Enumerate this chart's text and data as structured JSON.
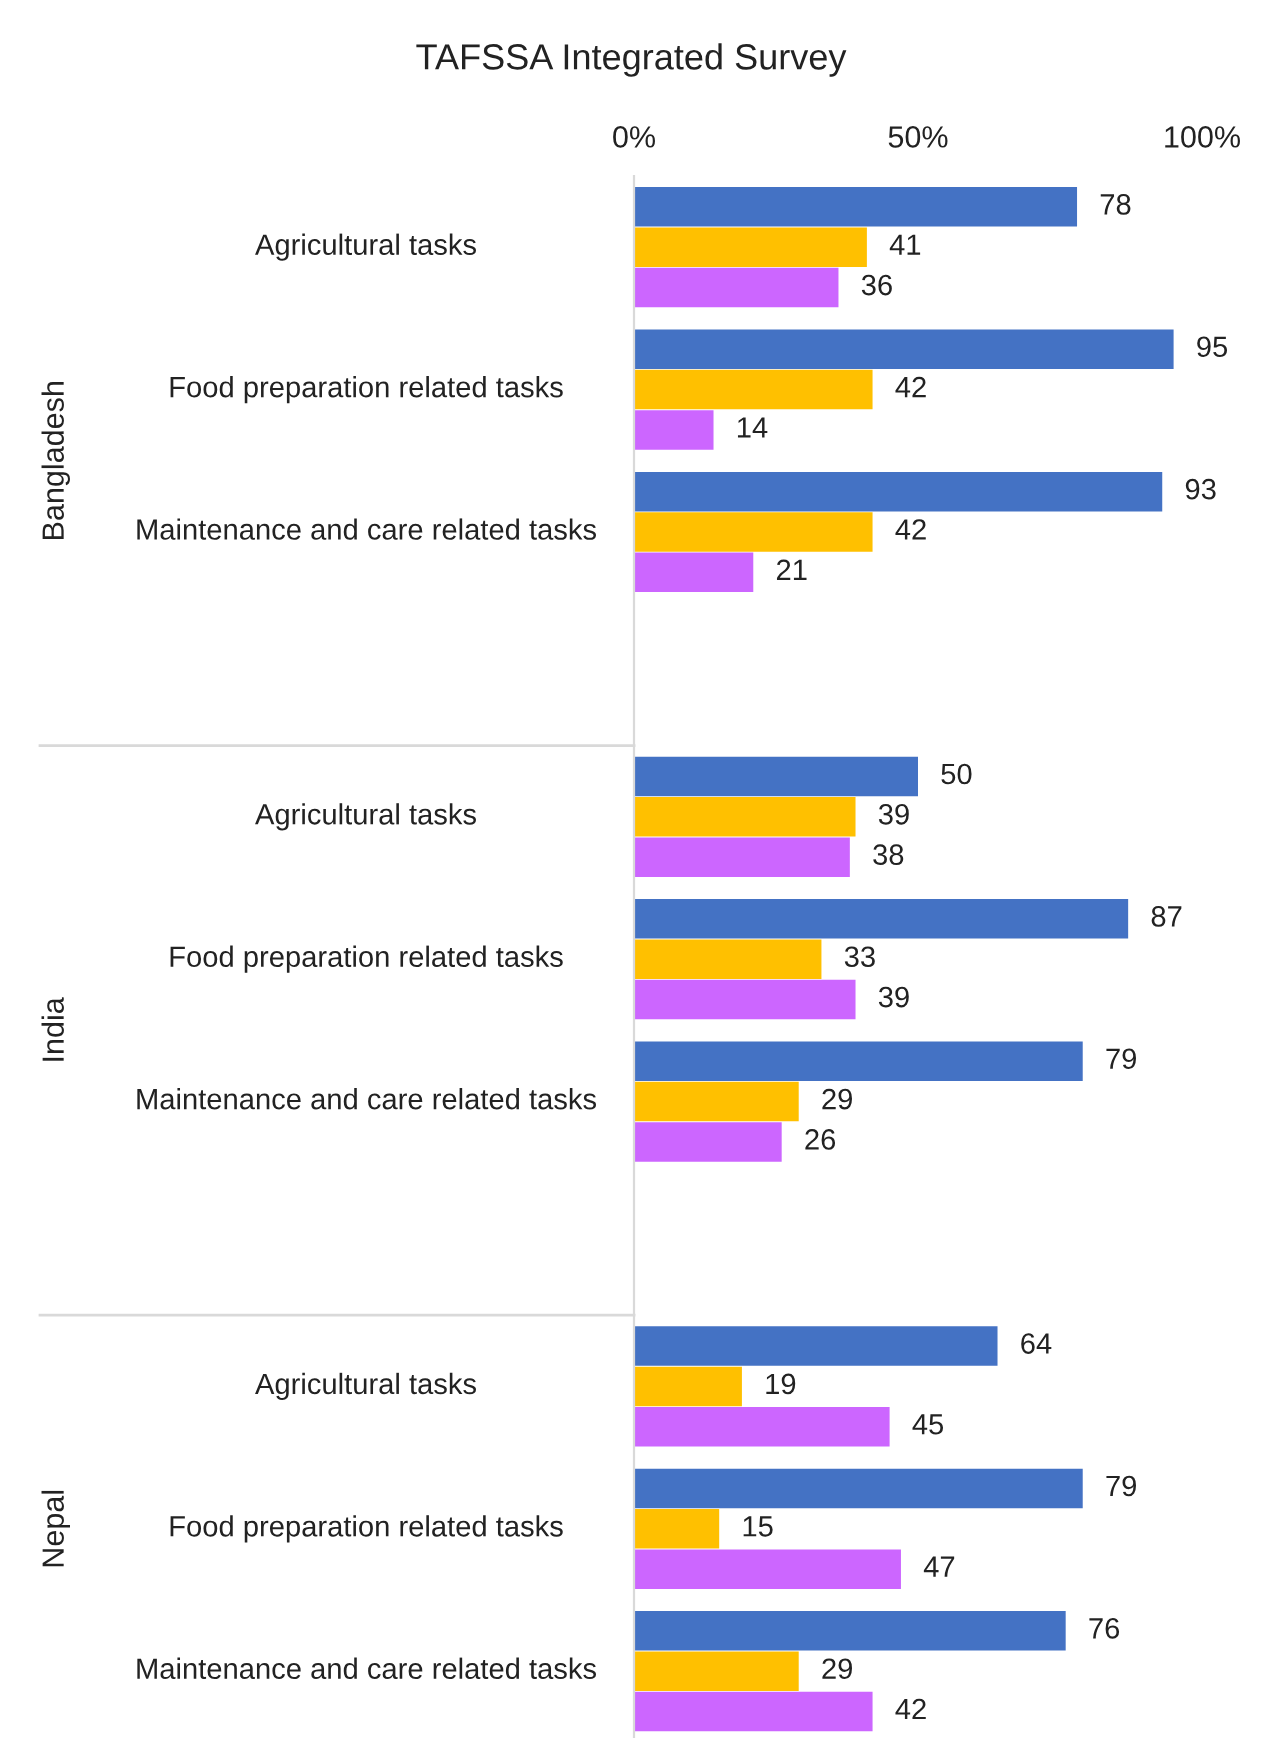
{
  "chart_data": [
    {
      "type": "bar",
      "orientation": "horizontal",
      "title": "TAFSSA Integrated Survey",
      "ylabel": "Bangladesh",
      "categories": [
        "Agricultural tasks",
        "Food preparation related tasks",
        "Maintenance and care related tasks"
      ],
      "series": [
        {
          "color": "#4472c4",
          "values": [
            78,
            95,
            93
          ]
        },
        {
          "color": "#ffc000",
          "values": [
            41,
            42,
            42
          ]
        },
        {
          "color": "#cc66ff",
          "values": [
            36,
            14,
            21
          ]
        }
      ],
      "xlim": [
        0,
        100
      ],
      "xticks": [
        {
          "value": 0,
          "label": "0%"
        },
        {
          "value": 50,
          "label": "50%"
        },
        {
          "value": 100,
          "label": "100%"
        }
      ],
      "data_labels": true,
      "grid": false
    },
    {
      "type": "bar",
      "orientation": "horizontal",
      "ylabel": "India",
      "categories": [
        "Agricultural tasks",
        "Food preparation related tasks",
        "Maintenance and care related tasks"
      ],
      "series": [
        {
          "color": "#4472c4",
          "values": [
            50,
            87,
            79
          ]
        },
        {
          "color": "#ffc000",
          "values": [
            39,
            33,
            29
          ]
        },
        {
          "color": "#cc66ff",
          "values": [
            38,
            39,
            26
          ]
        }
      ],
      "xlim": [
        0,
        100
      ],
      "tick_labels": "y",
      "data_labels": true,
      "grid": false
    },
    {
      "type": "bar",
      "orientation": "horizontal",
      "ylabel": "Nepal",
      "categories": [
        "Agricultural tasks",
        "Food preparation related tasks",
        "Maintenance and care related tasks"
      ],
      "series": [
        {
          "color": "#4472c4",
          "values": [
            64,
            79,
            76
          ]
        },
        {
          "color": "#ffc000",
          "values": [
            19,
            15,
            29
          ]
        },
        {
          "color": "#cc66ff",
          "values": [
            45,
            47,
            42
          ]
        }
      ],
      "xlim": [
        0,
        100
      ],
      "tick_labels": "y",
      "data_labels": true,
      "grid": false
    }
  ]
}
